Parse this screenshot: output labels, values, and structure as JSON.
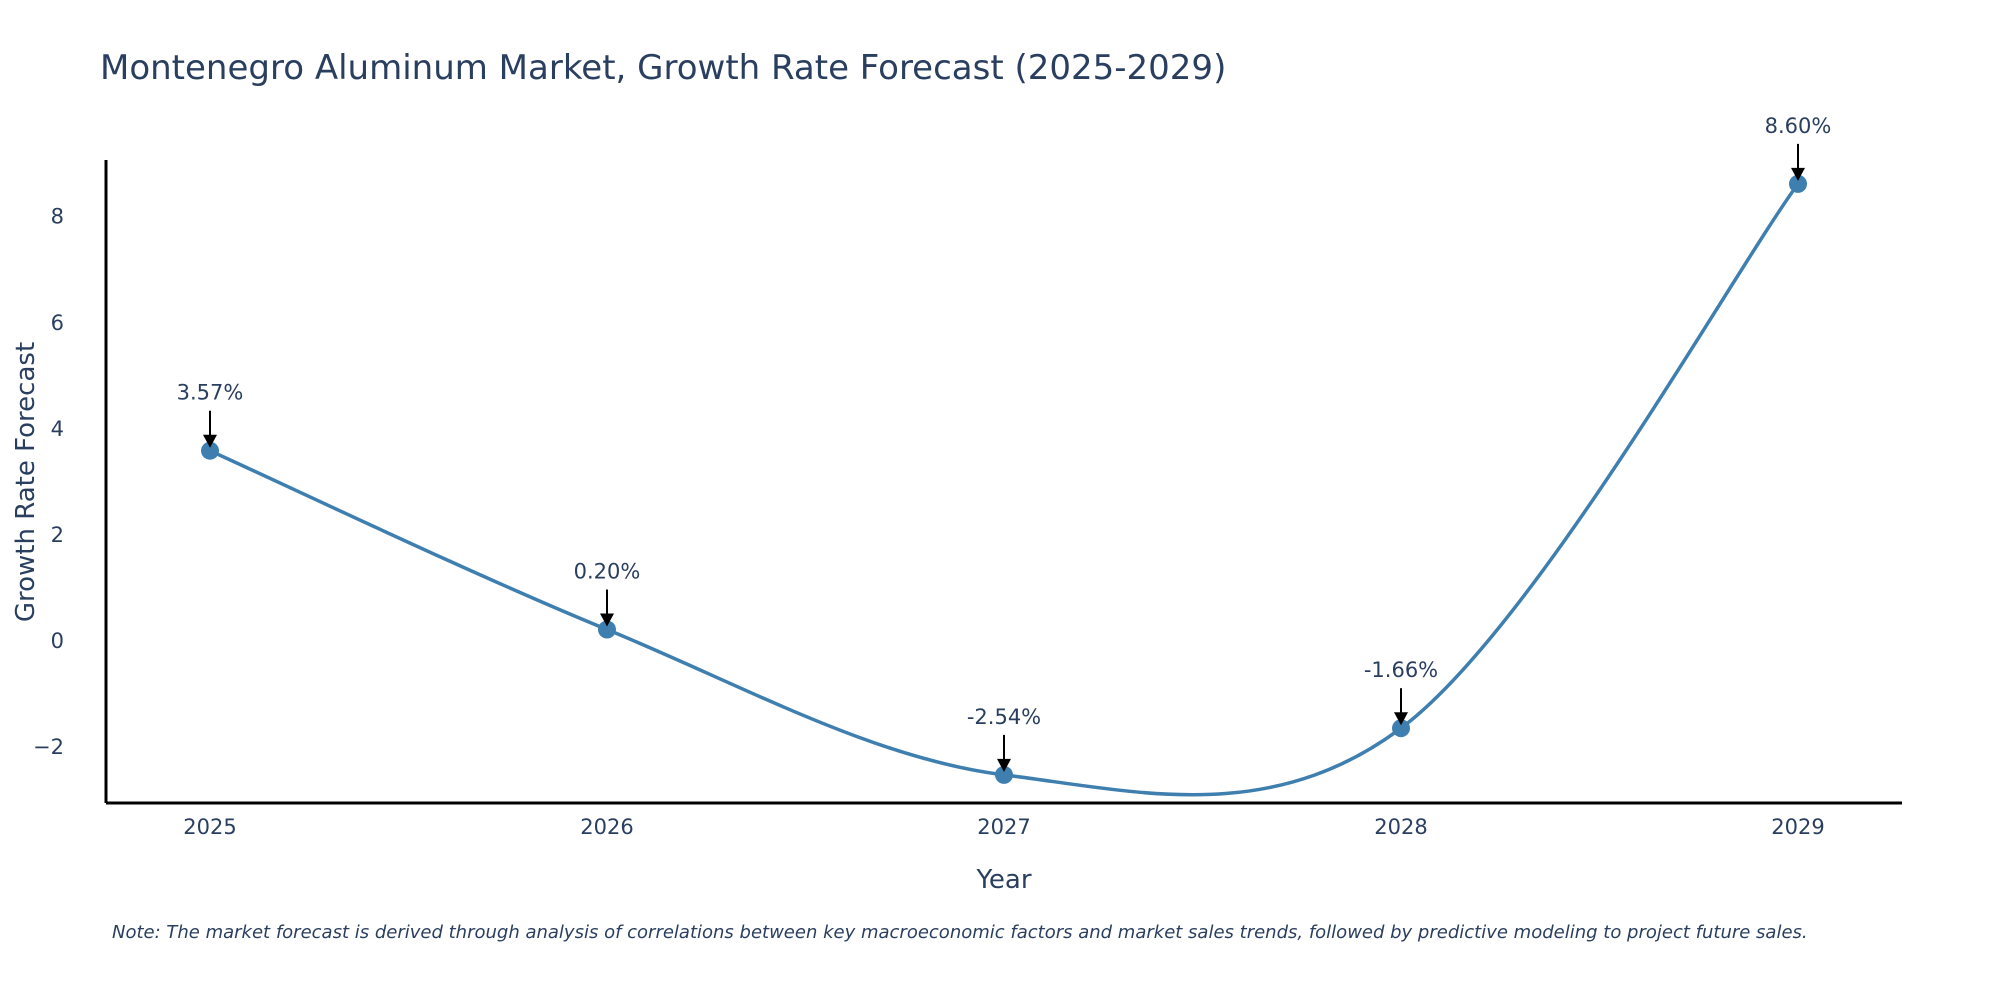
{
  "chart_data": {
    "type": "line",
    "title": "Montenegro Aluminum Market, Growth Rate Forecast (2025-2029)",
    "xlabel": "Year",
    "ylabel": "Growth Rate Forecast",
    "categories": [
      "2025",
      "2026",
      "2027",
      "2028",
      "2029"
    ],
    "values": [
      3.57,
      0.2,
      -2.54,
      -1.66,
      8.6
    ],
    "data_labels": [
      "3.57%",
      "0.20%",
      "-2.54%",
      "-1.66%",
      "8.60%"
    ],
    "y_ticks": [
      -2,
      0,
      2,
      4,
      6,
      8
    ],
    "y_tick_labels": [
      "−2",
      "0",
      "2",
      "4",
      "6",
      "8"
    ],
    "ylim": [
      -3.07,
      9.05
    ],
    "grid": false,
    "line_color": "#3f7fb0",
    "marker_color": "#3f7fb0",
    "note": "Note: The market forecast is derived through analysis of correlations between key macroeconomic factors and market sales trends, followed by predictive modeling to project future sales."
  }
}
